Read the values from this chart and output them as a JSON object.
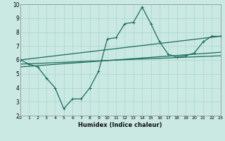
{
  "xlabel": "Humidex (Indice chaleur)",
  "xlim": [
    0,
    23
  ],
  "ylim": [
    2,
    10
  ],
  "xticks": [
    0,
    1,
    2,
    3,
    4,
    5,
    6,
    7,
    8,
    9,
    10,
    11,
    12,
    13,
    14,
    15,
    16,
    17,
    18,
    19,
    20,
    21,
    22,
    23
  ],
  "yticks": [
    2,
    3,
    4,
    5,
    6,
    7,
    8,
    9,
    10
  ],
  "bg_color": "#cbe9e3",
  "grid_color": "#a8d5cc",
  "line_color": "#1a6b5e",
  "line1_x": [
    0,
    1,
    2,
    3,
    4,
    5,
    6,
    7,
    8,
    9,
    10,
    11,
    12,
    13,
    14,
    15,
    16,
    17,
    18,
    19,
    20,
    21,
    22,
    23
  ],
  "line1_y": [
    6.0,
    5.7,
    5.5,
    4.7,
    4.0,
    2.5,
    3.2,
    3.2,
    4.0,
    5.2,
    7.5,
    7.6,
    8.6,
    8.7,
    9.8,
    8.6,
    7.3,
    6.4,
    6.2,
    6.3,
    6.5,
    7.3,
    7.7,
    7.7
  ],
  "line2_x": [
    0,
    23
  ],
  "line2_y": [
    6.0,
    7.7
  ],
  "line3_x": [
    0,
    23
  ],
  "line3_y": [
    5.7,
    6.3
  ],
  "line4_x": [
    0,
    23
  ],
  "line4_y": [
    5.5,
    6.55
  ]
}
